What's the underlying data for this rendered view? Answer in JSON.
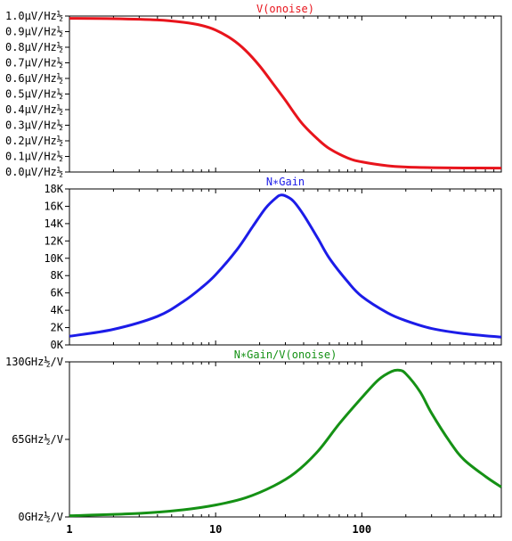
{
  "chart_data": [
    {
      "type": "line",
      "title": "V(onoise)",
      "xscale": "log",
      "xlim": [
        1,
        900
      ],
      "ylim": [
        0,
        1.0
      ],
      "y_ticks": [
        0.0,
        0.1,
        0.2,
        0.3,
        0.4,
        0.5,
        0.6,
        0.7,
        0.8,
        0.9,
        1.0
      ],
      "y_tick_labels": [
        "0.0µV/Hz½",
        "0.1µV/Hz½",
        "0.2µV/Hz½",
        "0.3µV/Hz½",
        "0.4µV/Hz½",
        "0.5µV/Hz½",
        "0.6µV/Hz½",
        "0.7µV/Hz½",
        "0.8µV/Hz½",
        "0.9µV/Hz½",
        "1.0µV/Hz½"
      ],
      "color": "#e8141c",
      "series": [
        {
          "x": [
            1,
            2,
            4,
            6,
            8,
            10,
            13,
            16,
            20,
            25,
            30,
            35,
            40,
            50,
            60,
            80,
            100,
            150,
            200,
            300,
            500,
            900
          ],
          "y": [
            0.985,
            0.983,
            0.975,
            0.96,
            0.94,
            0.91,
            0.85,
            0.78,
            0.68,
            0.56,
            0.46,
            0.37,
            0.3,
            0.21,
            0.15,
            0.09,
            0.065,
            0.04,
            0.032,
            0.028,
            0.026,
            0.025
          ]
        }
      ]
    },
    {
      "type": "line",
      "title": "N∗Gain",
      "xscale": "log",
      "xlim": [
        1,
        900
      ],
      "ylim": [
        0,
        18000
      ],
      "y_ticks": [
        0,
        2000,
        4000,
        6000,
        8000,
        10000,
        12000,
        14000,
        16000,
        18000
      ],
      "y_tick_labels": [
        "0K",
        "2K",
        "4K",
        "6K",
        "8K",
        "10K",
        "12K",
        "14K",
        "16K",
        "18K"
      ],
      "color": "#1c1ce8",
      "series": [
        {
          "x": [
            1,
            2,
            4,
            6,
            8,
            10,
            14,
            18,
            22,
            26,
            28,
            30,
            34,
            40,
            50,
            60,
            80,
            100,
            150,
            200,
            300,
            500,
            900
          ],
          "y": [
            1000,
            1800,
            3300,
            5000,
            6600,
            8100,
            11000,
            13700,
            15800,
            17000,
            17300,
            17200,
            16600,
            15000,
            12300,
            10000,
            7300,
            5600,
            3700,
            2800,
            1900,
            1300,
            900
          ]
        }
      ]
    },
    {
      "type": "line",
      "title": "N∗Gain/V(onoise)",
      "xscale": "log",
      "xlim": [
        1,
        900
      ],
      "ylim": [
        0,
        130
      ],
      "y_ticks": [
        0,
        65,
        130
      ],
      "y_tick_labels": [
        "0GHz½/V",
        "65GHz½/V",
        "130GHz½/V"
      ],
      "color": "#159115",
      "series": [
        {
          "x": [
            1,
            3,
            6,
            10,
            16,
            25,
            35,
            50,
            70,
            100,
            130,
            160,
            180,
            200,
            250,
            300,
            400,
            500,
            700,
            900
          ],
          "y": [
            1,
            3,
            6,
            10,
            16,
            26,
            37,
            55,
            78,
            100,
            115,
            122,
            123,
            120,
            105,
            87,
            63,
            48,
            34,
            25
          ]
        }
      ]
    }
  ],
  "x_axis": {
    "ticks": [
      1,
      10,
      100
    ],
    "tick_labels": [
      "1",
      "10",
      "100"
    ]
  }
}
